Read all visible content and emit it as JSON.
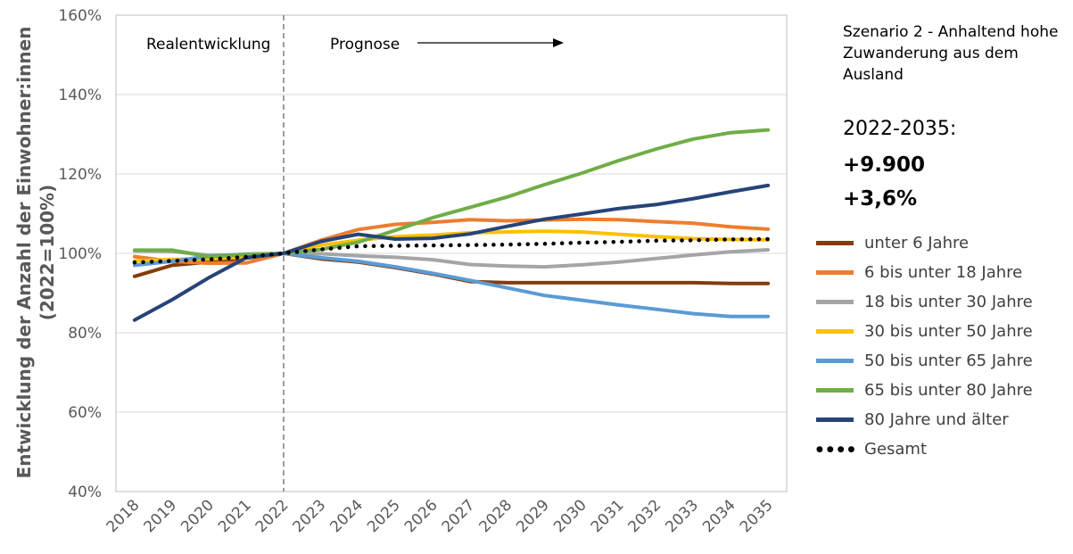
{
  "chart_data": {
    "type": "line",
    "title": "",
    "xlabel": "",
    "ylabel": "Entwicklung der Anzahl der Einwohner:innen",
    "ylabel2": "(2022=100%)",
    "x": [
      "2018",
      "2019",
      "2020",
      "2021",
      "2022",
      "2023",
      "2024",
      "2025",
      "2026",
      "2027",
      "2028",
      "2029",
      "2030",
      "2031",
      "2032",
      "2033",
      "2034",
      "2035"
    ],
    "ylim": [
      40,
      160
    ],
    "yticks": [
      "40%",
      "60%",
      "80%",
      "100%",
      "120%",
      "140%",
      "160%"
    ],
    "grid": "horizontal",
    "divider_at": "2022",
    "annotations": {
      "left": "Realentwicklung",
      "right": "Prognose"
    },
    "series": [
      {
        "name": "unter 6 Jahre",
        "color": "#843C0C",
        "style": "solid",
        "values": [
          94.2,
          97.0,
          97.8,
          98.8,
          100,
          98.6,
          97.8,
          96.4,
          94.8,
          92.9,
          92.6,
          92.6,
          92.6,
          92.6,
          92.6,
          92.6,
          92.4,
          92.4
        ]
      },
      {
        "name": "6 bis unter 18 Jahre",
        "color": "#ED7D31",
        "style": "solid",
        "values": [
          99.2,
          98.0,
          97.5,
          97.6,
          100,
          103.3,
          106.0,
          107.3,
          107.8,
          108.5,
          108.2,
          108.4,
          108.6,
          108.5,
          108.0,
          107.6,
          106.7,
          106.1
        ]
      },
      {
        "name": "18 bis unter 30 Jahre",
        "color": "#A5A5A5",
        "style": "solid",
        "values": [
          100.6,
          100.5,
          99.5,
          99.6,
          100,
          99.9,
          99.4,
          99.0,
          98.4,
          97.2,
          96.8,
          96.6,
          97.1,
          97.8,
          98.7,
          99.6,
          100.4,
          100.9
        ]
      },
      {
        "name": "30 bis unter 50 Jahre",
        "color": "#FFC000",
        "style": "solid",
        "values": [
          98.1,
          98.5,
          98.6,
          99.1,
          100,
          102.1,
          103.3,
          104.2,
          104.6,
          105.2,
          105.4,
          105.6,
          105.4,
          104.8,
          104.2,
          103.7,
          103.5,
          103.4
        ]
      },
      {
        "name": "50 bis unter 65 Jahre",
        "color": "#5B9BD5",
        "style": "solid",
        "values": [
          97.0,
          98.0,
          99.3,
          99.8,
          100,
          98.9,
          98.0,
          96.6,
          95.0,
          93.2,
          91.3,
          89.4,
          88.2,
          87.0,
          85.9,
          84.8,
          84.1,
          84.1
        ]
      },
      {
        "name": "65 bis unter 80 Jahre",
        "color": "#70AD47",
        "style": "solid",
        "values": [
          100.8,
          100.8,
          99.2,
          99.7,
          100,
          101.0,
          102.8,
          105.8,
          109.0,
          111.6,
          114.2,
          117.3,
          120.2,
          123.4,
          126.3,
          128.8,
          130.4,
          131.1
        ]
      },
      {
        "name": "80 Jahre und älter",
        "color": "#264478",
        "style": "solid",
        "values": [
          83.2,
          88.3,
          93.9,
          98.9,
          100,
          103.0,
          104.8,
          103.6,
          103.8,
          104.9,
          106.8,
          108.6,
          109.9,
          111.3,
          112.3,
          113.8,
          115.5,
          117.1
        ]
      },
      {
        "name": "Gesamt",
        "color": "#000000",
        "style": "dotted",
        "values": [
          97.7,
          98.1,
          98.5,
          99.1,
          100,
          101.0,
          101.8,
          101.9,
          102.0,
          102.1,
          102.2,
          102.4,
          102.7,
          102.9,
          103.2,
          103.3,
          103.5,
          103.6
        ]
      }
    ]
  },
  "side_panel": {
    "scenario": "Szenario 2 - Anhaltend hohe Zuwanderung aus dem Ausland",
    "period": "2022-2035:",
    "absolute_change": "+9.900",
    "percent_change": "+3,6%"
  }
}
